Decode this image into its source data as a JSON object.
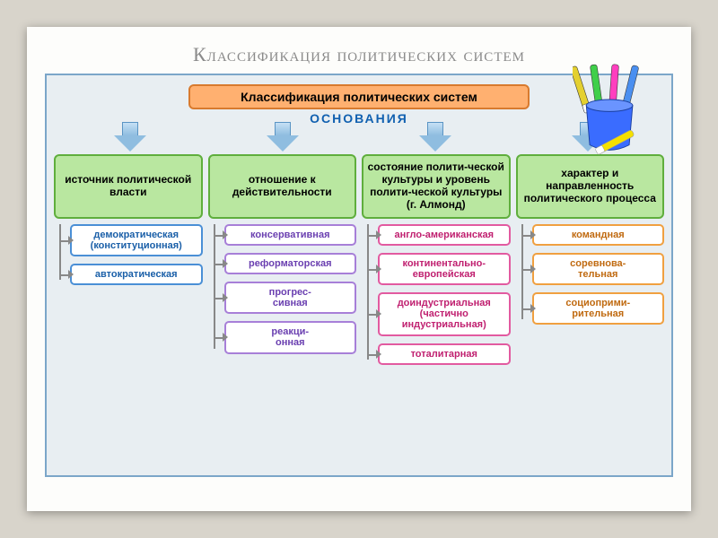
{
  "slide_title": "Классификация политических систем",
  "diagram": {
    "root_label": "Классификация политических систем",
    "basis_label": "ОСНОВАНИЯ",
    "root_bg": "#ffb070",
    "root_border": "#d87a2e",
    "arrow_fill": "#8fbde0",
    "columns": [
      {
        "criterion": "источник политической власти",
        "crit_bg": "#b9e7a0",
        "crit_border": "#5fae3d",
        "item_border": "#4a8fd6",
        "item_text": "#1a5fa8",
        "items": [
          "демократическая (конституционная)",
          "автократическая"
        ]
      },
      {
        "criterion": "отношение к действительности",
        "crit_bg": "#b9e7a0",
        "crit_border": "#5fae3d",
        "item_border": "#a77fd8",
        "item_text": "#6a3fb0",
        "items": [
          "консервативная",
          "реформаторская",
          "прогрес-\nсивная",
          "реакци-\nонная"
        ]
      },
      {
        "criterion": "состояние полити-ческой культуры и уровень полити-ческой культуры (г. Алмонд)",
        "crit_bg": "#b9e7a0",
        "crit_border": "#5fae3d",
        "item_border": "#e25aa0",
        "item_text": "#c02070",
        "items": [
          "англо-американская",
          "континентально-европейская",
          "доиндустриальная (частично индустриальная)",
          "тоталитарная"
        ]
      },
      {
        "criterion": "характер и направленность политического процесса",
        "crit_bg": "#b9e7a0",
        "crit_border": "#5fae3d",
        "item_border": "#f0a040",
        "item_text": "#c06a10",
        "items": [
          "командная",
          "соревнова-\nтельная",
          "социоприми-\nрительная"
        ]
      }
    ]
  },
  "pencup": {
    "cup_color": "#3a6cff",
    "pens": [
      {
        "color": "#e4d030",
        "x": 8,
        "rot": -18
      },
      {
        "color": "#3fcf4a",
        "x": 22,
        "rot": -8
      },
      {
        "color": "#ff3fbf",
        "x": 36,
        "rot": 4
      },
      {
        "color": "#4a8ff0",
        "x": 50,
        "rot": 14
      }
    ],
    "loose_pen": {
      "color": "#f5e000"
    }
  }
}
